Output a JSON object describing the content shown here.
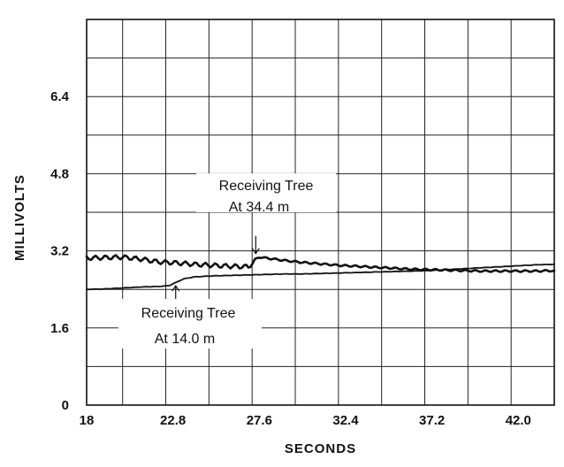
{
  "chart_data": {
    "type": "line",
    "title": "",
    "xlabel": "SECONDS",
    "ylabel": "MILLIVOLTS",
    "xlim": [
      18,
      44
    ],
    "ylim": [
      0,
      8
    ],
    "xticks": [
      "18",
      "22.8",
      "27.6",
      "32.4",
      "37.2",
      "42.0"
    ],
    "yticks": [
      "0",
      "1.6",
      "3.2",
      "4.8",
      "6.4"
    ],
    "grid": true,
    "series": [
      {
        "x": [
          18,
          19,
          20,
          21,
          22,
          23,
          24,
          25,
          26,
          27,
          27.6,
          28,
          29,
          30,
          31,
          32,
          33,
          34,
          35,
          36,
          37,
          38,
          39,
          40,
          41,
          42,
          43,
          44
        ],
        "y": [
          3.05,
          3.06,
          3.07,
          3.03,
          2.97,
          2.95,
          2.92,
          2.9,
          2.88,
          2.87,
          3.07,
          3.05,
          3.0,
          2.96,
          2.93,
          2.9,
          2.88,
          2.86,
          2.84,
          2.82,
          2.81,
          2.8,
          2.79,
          2.78,
          2.78,
          2.78,
          2.78,
          2.79
        ]
      },
      {
        "x": [
          18,
          19,
          20,
          21,
          22,
          22.6,
          23.0,
          23.4,
          24,
          25,
          26,
          27,
          28,
          29,
          30,
          31,
          32,
          33,
          34,
          35,
          36,
          37,
          38,
          39,
          40,
          41,
          42,
          43,
          44
        ],
        "y": [
          2.4,
          2.41,
          2.43,
          2.45,
          2.46,
          2.48,
          2.55,
          2.62,
          2.66,
          2.68,
          2.69,
          2.7,
          2.71,
          2.72,
          2.72,
          2.73,
          2.74,
          2.75,
          2.76,
          2.77,
          2.78,
          2.79,
          2.81,
          2.83,
          2.85,
          2.87,
          2.89,
          2.91,
          2.92
        ]
      }
    ],
    "annotations": [
      {
        "line1": "Receiving Tree",
        "line2": "At 34.4 m",
        "arrow_x": 27.6,
        "arrow_y": 3.07
      },
      {
        "line1": "Receiving Tree",
        "line2": "At 14.0 m",
        "arrow_x": 23.0,
        "arrow_y": 2.55
      }
    ]
  }
}
